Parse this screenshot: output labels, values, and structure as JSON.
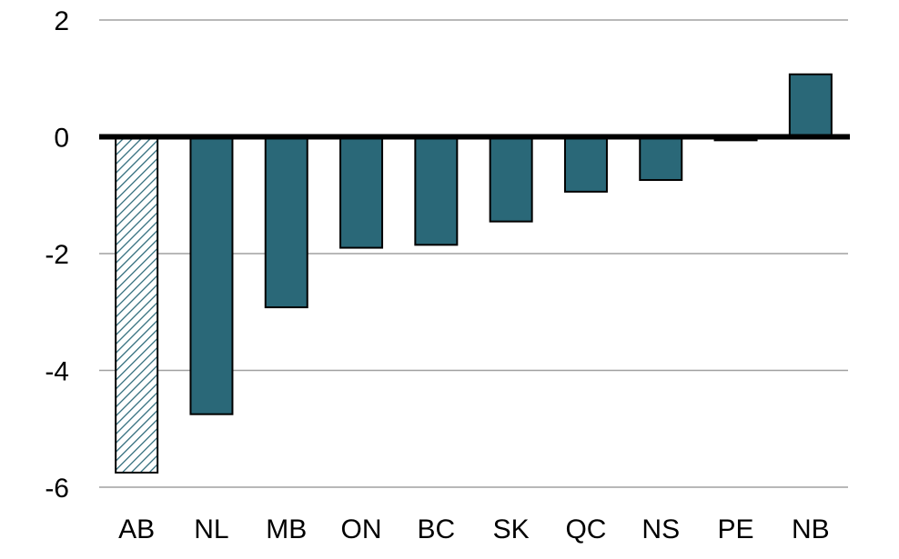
{
  "chart_data": {
    "type": "bar",
    "title": "",
    "xlabel": "",
    "ylabel": "",
    "categories": [
      "AB",
      "NL",
      "MB",
      "ON",
      "BC",
      "SK",
      "QC",
      "NS",
      "PE",
      "NB"
    ],
    "values": [
      -5.75,
      -4.75,
      -2.92,
      -1.9,
      -1.85,
      -1.45,
      -0.94,
      -0.74,
      -0.06,
      1.07
    ],
    "hatched": [
      true,
      false,
      false,
      false,
      false,
      false,
      false,
      false,
      false,
      false
    ],
    "ylim": [
      -6,
      2
    ],
    "yticks": [
      2,
      0,
      -2,
      -4,
      -6
    ],
    "ytick_labels": [
      "2",
      "0",
      "-2",
      "-4",
      "-6"
    ],
    "grid": true,
    "legend": "none",
    "colors": {
      "bar_fill": "#2a6878",
      "bar_stroke": "#000000",
      "hatch_line": "#2a6878",
      "grid": "#a0a0a0",
      "zero_line": "#000000"
    }
  }
}
